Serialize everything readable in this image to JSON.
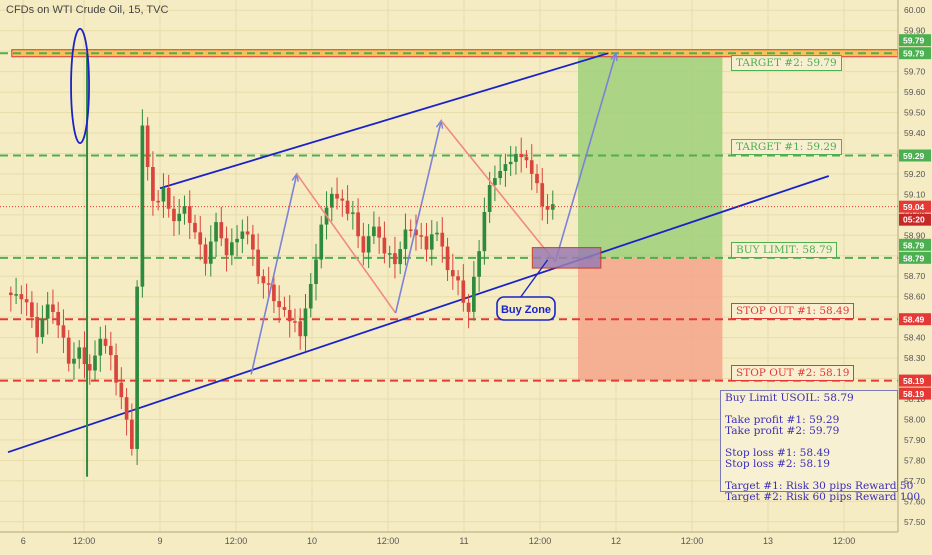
{
  "title": "CFDs on WTI Crude Oil, 15, TVC",
  "chart_data": {
    "type": "candlestick",
    "ylim": [
      57.45,
      60.05
    ],
    "xlim": [
      0,
      108
    ],
    "price_ticks": [
      "60.00",
      "59.90",
      "59.80",
      "59.70",
      "59.60",
      "59.50",
      "59.40",
      "59.30",
      "59.20",
      "59.10",
      "59.00",
      "58.90",
      "58.80",
      "58.70",
      "58.60",
      "58.50",
      "58.40",
      "58.30",
      "58.20",
      "58.10",
      "58.00",
      "57.90",
      "57.80",
      "57.70",
      "57.60",
      "57.50"
    ],
    "time_labels": [
      {
        "x": 2,
        "label": "6"
      },
      {
        "x": 10,
        "label": "12:00"
      },
      {
        "x": 20,
        "label": "9"
      },
      {
        "x": 30,
        "label": "12:00"
      },
      {
        "x": 40,
        "label": "10"
      },
      {
        "x": 50,
        "label": "12:00"
      },
      {
        "x": 60,
        "label": "11"
      },
      {
        "x": 70,
        "label": "12:00"
      },
      {
        "x": 80,
        "label": "12"
      },
      {
        "x": 90,
        "label": "12:00"
      },
      {
        "x": 100,
        "label": "13"
      },
      {
        "x": 110,
        "label": "12:00"
      }
    ],
    "close_series": [
      58.62,
      58.58,
      58.42,
      58.55,
      58.48,
      58.28,
      58.35,
      58.22,
      58.41,
      58.3,
      58.1,
      57.86,
      59.45,
      59.05,
      59.12,
      58.95,
      59.06,
      58.9,
      58.78,
      58.95,
      58.82,
      58.88,
      58.92,
      58.72,
      58.64,
      58.55,
      58.5,
      58.42,
      58.65,
      58.95,
      59.12,
      59.05,
      59.0,
      58.82,
      58.94,
      58.83,
      58.76,
      58.91,
      58.92,
      58.85,
      58.92,
      58.75,
      58.66,
      58.52,
      58.84,
      59.15,
      59.2,
      59.26,
      59.3,
      59.22,
      59.05,
      59.04
    ],
    "last_price": {
      "value": "59.04",
      "countdown": "05:20",
      "color": "#e53935"
    },
    "levels": [
      {
        "value": 59.79,
        "axis_label": "59.79",
        "chart_label": "TARGET #2: 59.79",
        "color": "#4caf50",
        "dash": true
      },
      {
        "value": 59.29,
        "axis_label": "59.29",
        "chart_label": "TARGET #1: 59.29",
        "color": "#4caf50",
        "dash": true
      },
      {
        "value": 58.79,
        "axis_label": "58.79",
        "chart_label": "BUY LIMIT: 58.79",
        "color": "#4caf50",
        "dash": true
      },
      {
        "value": 58.49,
        "axis_label": "58.49",
        "chart_label": "STOP OUT #1: 58.49",
        "color": "#e53935",
        "dash": true
      },
      {
        "value": 58.19,
        "axis_label": "58.19",
        "chart_label": "STOP OUT #2: 58.19",
        "color": "#e53935",
        "dash": true
      }
    ],
    "extra_axis_labels": [
      {
        "value": 59.79,
        "label": "59.79",
        "color": "#4caf50"
      },
      {
        "value": 58.79,
        "label": "58.79",
        "color": "#4caf50"
      },
      {
        "value": 58.19,
        "label": "58.19",
        "color": "#e53935"
      }
    ],
    "channel": {
      "upper": {
        "x1": 20,
        "y1": 59.13,
        "x2": 79,
        "y2": 59.79
      },
      "lower": {
        "x1": 0,
        "y1": 57.84,
        "x2": 108,
        "y2": 59.19
      }
    },
    "zigzag": [
      [
        32,
        58.22
      ],
      [
        38,
        59.2
      ],
      [
        51,
        58.52
      ],
      [
        57,
        59.46
      ],
      [
        72,
        58.77
      ],
      [
        80,
        59.79
      ]
    ],
    "buy_zone": {
      "label": "Buy Zone",
      "x1": 69,
      "x2": 78,
      "y_top": 58.84,
      "y_bottom": 58.74
    },
    "profit_zone": {
      "x1": 75,
      "x2": 94,
      "y_top": 59.79,
      "y_bottom": 58.79
    },
    "loss_zone": {
      "x1": 75,
      "x2": 94,
      "y_top": 58.79,
      "y_bottom": 58.19
    },
    "notes": "Buy Limit USOIL: 58.79\n\nTake profit #1: 59.29\nTake profit #2: 59.79\n\nStop loss #1: 58.49\nStop loss #2: 58.19\n\nTarget #1: Risk 30 pips Reward 50\nTarget #2: Risk 60 pips Reward 100"
  },
  "colors": {
    "background": "#f6ecc4",
    "channel": "#1a23c8",
    "zigzag_up": "#7c82d8",
    "zigzag_down": "#f08a80",
    "profit": "#9fd07a",
    "loss": "#f4a58a",
    "candle_up": "#2e8b3e",
    "candle_down": "#d9443c"
  }
}
